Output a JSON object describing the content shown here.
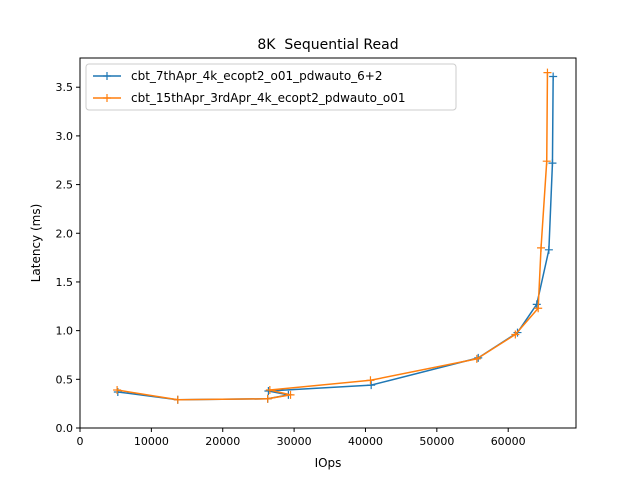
{
  "chart_data": {
    "type": "line",
    "title": "8K  Sequential Read",
    "xlabel": "IOps",
    "ylabel": "Latency (ms)",
    "xlim": [
      0,
      69500
    ],
    "ylim": [
      0,
      3.8
    ],
    "xticks": [
      0,
      10000,
      20000,
      30000,
      40000,
      50000,
      60000
    ],
    "yticks": [
      0.0,
      0.5,
      1.0,
      1.5,
      2.0,
      2.5,
      3.0,
      3.5
    ],
    "xtick_labels": [
      "0",
      "10000",
      "20000",
      "30000",
      "40000",
      "50000",
      "60000"
    ],
    "ytick_labels": [
      "0.0",
      "0.5",
      "1.0",
      "1.5",
      "2.0",
      "2.5",
      "3.0",
      "3.5"
    ],
    "grid": false,
    "legend_position": "top-left",
    "series": [
      {
        "name": "cbt_7thApr_4k_ecopt2_o01_pdwauto_6+2",
        "color": "#1f77b4",
        "marker": "+",
        "x": [
          5300,
          13700,
          26300,
          29200,
          26400,
          40800,
          55800,
          61300,
          64000,
          65700,
          66200,
          66300
        ],
        "y": [
          0.37,
          0.29,
          0.3,
          0.34,
          0.38,
          0.44,
          0.72,
          0.98,
          1.27,
          1.83,
          2.72,
          3.61
        ]
      },
      {
        "name": "cbt_15thApr_3rdApr_4k_ecopt2_pdwauto_o01",
        "color": "#ff7f0e",
        "marker": "+",
        "x": [
          5200,
          13700,
          26300,
          29500,
          26600,
          40700,
          55600,
          61000,
          64200,
          64600,
          65400,
          65500
        ],
        "y": [
          0.39,
          0.29,
          0.3,
          0.34,
          0.39,
          0.49,
          0.71,
          0.96,
          1.23,
          1.85,
          2.74,
          3.65
        ]
      }
    ]
  }
}
